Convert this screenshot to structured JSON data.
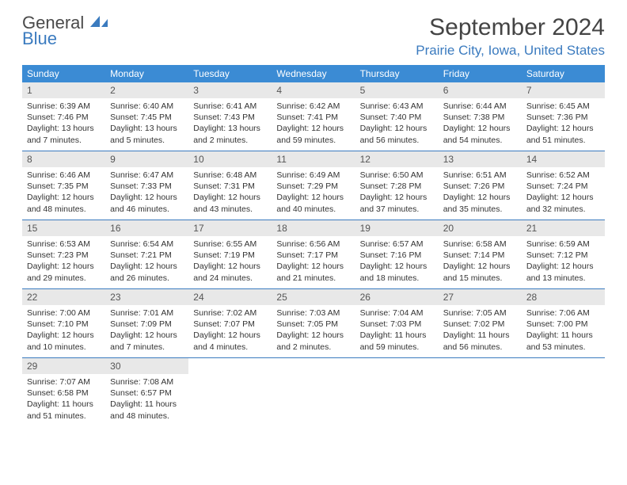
{
  "logo": {
    "line1": "General",
    "line2": "Blue"
  },
  "title": "September 2024",
  "location": "Prairie City, Iowa, United States",
  "colors": {
    "header_bg": "#3b8bd4",
    "accent": "#3b7bbf",
    "daynum_bg": "#e8e8e8",
    "text": "#333333",
    "bg": "#ffffff"
  },
  "daysOfWeek": [
    "Sunday",
    "Monday",
    "Tuesday",
    "Wednesday",
    "Thursday",
    "Friday",
    "Saturday"
  ],
  "weeks": [
    [
      {
        "n": "1",
        "sunrise": "6:39 AM",
        "sunset": "7:46 PM",
        "daylight": "13 hours and 7 minutes."
      },
      {
        "n": "2",
        "sunrise": "6:40 AM",
        "sunset": "7:45 PM",
        "daylight": "13 hours and 5 minutes."
      },
      {
        "n": "3",
        "sunrise": "6:41 AM",
        "sunset": "7:43 PM",
        "daylight": "13 hours and 2 minutes."
      },
      {
        "n": "4",
        "sunrise": "6:42 AM",
        "sunset": "7:41 PM",
        "daylight": "12 hours and 59 minutes."
      },
      {
        "n": "5",
        "sunrise": "6:43 AM",
        "sunset": "7:40 PM",
        "daylight": "12 hours and 56 minutes."
      },
      {
        "n": "6",
        "sunrise": "6:44 AM",
        "sunset": "7:38 PM",
        "daylight": "12 hours and 54 minutes."
      },
      {
        "n": "7",
        "sunrise": "6:45 AM",
        "sunset": "7:36 PM",
        "daylight": "12 hours and 51 minutes."
      }
    ],
    [
      {
        "n": "8",
        "sunrise": "6:46 AM",
        "sunset": "7:35 PM",
        "daylight": "12 hours and 48 minutes."
      },
      {
        "n": "9",
        "sunrise": "6:47 AM",
        "sunset": "7:33 PM",
        "daylight": "12 hours and 46 minutes."
      },
      {
        "n": "10",
        "sunrise": "6:48 AM",
        "sunset": "7:31 PM",
        "daylight": "12 hours and 43 minutes."
      },
      {
        "n": "11",
        "sunrise": "6:49 AM",
        "sunset": "7:29 PM",
        "daylight": "12 hours and 40 minutes."
      },
      {
        "n": "12",
        "sunrise": "6:50 AM",
        "sunset": "7:28 PM",
        "daylight": "12 hours and 37 minutes."
      },
      {
        "n": "13",
        "sunrise": "6:51 AM",
        "sunset": "7:26 PM",
        "daylight": "12 hours and 35 minutes."
      },
      {
        "n": "14",
        "sunrise": "6:52 AM",
        "sunset": "7:24 PM",
        "daylight": "12 hours and 32 minutes."
      }
    ],
    [
      {
        "n": "15",
        "sunrise": "6:53 AM",
        "sunset": "7:23 PM",
        "daylight": "12 hours and 29 minutes."
      },
      {
        "n": "16",
        "sunrise": "6:54 AM",
        "sunset": "7:21 PM",
        "daylight": "12 hours and 26 minutes."
      },
      {
        "n": "17",
        "sunrise": "6:55 AM",
        "sunset": "7:19 PM",
        "daylight": "12 hours and 24 minutes."
      },
      {
        "n": "18",
        "sunrise": "6:56 AM",
        "sunset": "7:17 PM",
        "daylight": "12 hours and 21 minutes."
      },
      {
        "n": "19",
        "sunrise": "6:57 AM",
        "sunset": "7:16 PM",
        "daylight": "12 hours and 18 minutes."
      },
      {
        "n": "20",
        "sunrise": "6:58 AM",
        "sunset": "7:14 PM",
        "daylight": "12 hours and 15 minutes."
      },
      {
        "n": "21",
        "sunrise": "6:59 AM",
        "sunset": "7:12 PM",
        "daylight": "12 hours and 13 minutes."
      }
    ],
    [
      {
        "n": "22",
        "sunrise": "7:00 AM",
        "sunset": "7:10 PM",
        "daylight": "12 hours and 10 minutes."
      },
      {
        "n": "23",
        "sunrise": "7:01 AM",
        "sunset": "7:09 PM",
        "daylight": "12 hours and 7 minutes."
      },
      {
        "n": "24",
        "sunrise": "7:02 AM",
        "sunset": "7:07 PM",
        "daylight": "12 hours and 4 minutes."
      },
      {
        "n": "25",
        "sunrise": "7:03 AM",
        "sunset": "7:05 PM",
        "daylight": "12 hours and 2 minutes."
      },
      {
        "n": "26",
        "sunrise": "7:04 AM",
        "sunset": "7:03 PM",
        "daylight": "11 hours and 59 minutes."
      },
      {
        "n": "27",
        "sunrise": "7:05 AM",
        "sunset": "7:02 PM",
        "daylight": "11 hours and 56 minutes."
      },
      {
        "n": "28",
        "sunrise": "7:06 AM",
        "sunset": "7:00 PM",
        "daylight": "11 hours and 53 minutes."
      }
    ],
    [
      {
        "n": "29",
        "sunrise": "7:07 AM",
        "sunset": "6:58 PM",
        "daylight": "11 hours and 51 minutes."
      },
      {
        "n": "30",
        "sunrise": "7:08 AM",
        "sunset": "6:57 PM",
        "daylight": "11 hours and 48 minutes."
      },
      null,
      null,
      null,
      null,
      null
    ]
  ],
  "labels": {
    "sunrise": "Sunrise:",
    "sunset": "Sunset:",
    "daylight": "Daylight:"
  }
}
